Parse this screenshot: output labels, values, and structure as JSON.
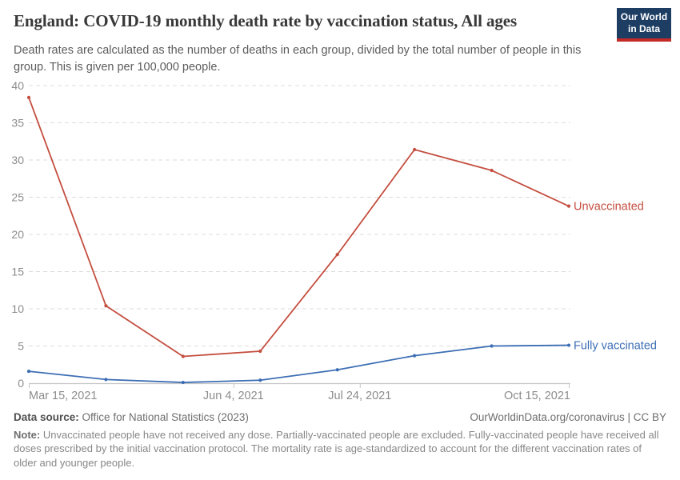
{
  "header": {
    "title": "England: COVID-19 monthly death rate by vaccination status, All ages",
    "subtitle": "Death rates are calculated as the number of deaths in each group, divided by the total number of people in this group. This is given per 100,000 people.",
    "logo": {
      "line1": "Our World",
      "line2": "in Data"
    }
  },
  "brand": {
    "logo_bg": "#1d3d63",
    "logo_bar": "#c32a27"
  },
  "chart_data": {
    "type": "line",
    "title": "England: COVID-19 monthly death rate by vaccination status, All ages",
    "xlabel": "",
    "ylabel": "",
    "unit": "deaths per 100,000 people",
    "ylim": [
      0,
      40
    ],
    "yticks": [
      0,
      5,
      10,
      15,
      20,
      25,
      30,
      35,
      40
    ],
    "grid": "horizontal-dashed",
    "legend": "series-end-labels",
    "x": [
      "Mar 15, 2021",
      "Apr 15, 2021",
      "May 15, 2021",
      "Jun 15, 2021",
      "Jul 15, 2021",
      "Aug 15, 2021",
      "Sep 15, 2021",
      "Oct 15, 2021"
    ],
    "xticks": [
      {
        "label": "Mar 15, 2021",
        "frac": 0.0,
        "anchor": "start"
      },
      {
        "label": "Jun 4, 2021",
        "frac": 0.379,
        "anchor": "middle"
      },
      {
        "label": "Jul 24, 2021",
        "frac": 0.613,
        "anchor": "middle"
      },
      {
        "label": "Oct 15, 2021",
        "frac": 1.0,
        "anchor": "end"
      }
    ],
    "series": [
      {
        "name": "Unvaccinated",
        "color": "#c44e3f",
        "values": [
          38.4,
          10.4,
          3.6,
          4.3,
          17.3,
          31.4,
          28.6,
          23.8
        ]
      },
      {
        "name": "Fully vaccinated",
        "color": "#3d6eb4",
        "values": [
          1.6,
          0.5,
          0.1,
          0.4,
          1.8,
          3.7,
          5.0,
          5.1
        ]
      }
    ]
  },
  "footer": {
    "data_source_label": "Data source:",
    "data_source_value": "Office for National Statistics (2023)",
    "attribution": "OurWorldinData.org/coronavirus | CC BY",
    "note_label": "Note:",
    "note_value": "Unvaccinated people have not received any dose. Partially-vaccinated people are excluded. Fully-vaccinated people have received all doses prescribed by the initial vaccination protocol. The mortality rate is age-standardized to account for the different vaccination rates of older and younger people."
  }
}
